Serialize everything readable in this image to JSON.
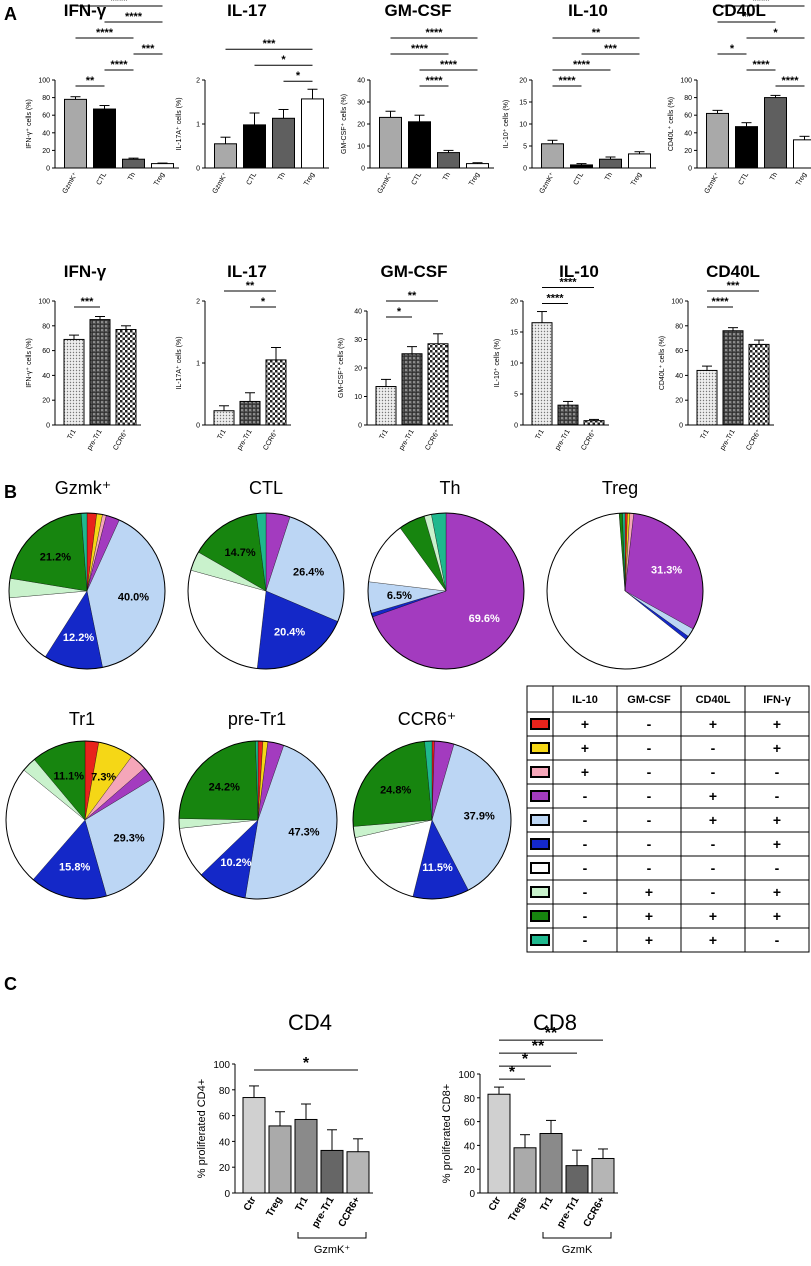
{
  "figure": {
    "panel_labels": [
      "A",
      "B",
      "C"
    ]
  },
  "chart_data": [
    {
      "id": "a1",
      "panel": "A",
      "type": "bar",
      "title": "IFN-γ",
      "ylabel": "IFN-γ⁺ cells (%)",
      "categories": [
        "GzmK⁺",
        "CTL",
        "Th",
        "Treg"
      ],
      "values": [
        78,
        67,
        10,
        5
      ],
      "errors": [
        3,
        4,
        1.2,
        0.6
      ],
      "ylim": [
        0,
        100
      ],
      "yticks": [
        0,
        20,
        40,
        60,
        80,
        100
      ],
      "fills": [
        "gray",
        "black",
        "dark",
        "white"
      ],
      "brackets": [
        {
          "from": 0,
          "to": 3,
          "label": "****"
        },
        {
          "from": 0,
          "to": 2,
          "label": "****"
        },
        {
          "from": 0,
          "to": 1,
          "label": "**"
        },
        {
          "from": 1,
          "to": 2,
          "label": "****"
        },
        {
          "from": 1,
          "to": 3,
          "label": "****"
        },
        {
          "from": 2,
          "to": 3,
          "label": "***"
        }
      ]
    },
    {
      "id": "a2",
      "panel": "A",
      "type": "bar",
      "title": "IL-17",
      "ylabel": "IL-17A⁺ cells (%)",
      "categories": [
        "GzmK⁺",
        "CTL",
        "Th",
        "Treg"
      ],
      "values": [
        0.55,
        0.98,
        1.13,
        1.57
      ],
      "errors": [
        0.15,
        0.27,
        0.2,
        0.22
      ],
      "ylim": [
        0,
        2
      ],
      "yticks": [
        0,
        1,
        2
      ],
      "fills": [
        "gray",
        "black",
        "dark",
        "white"
      ],
      "brackets": [
        {
          "from": 0,
          "to": 3,
          "label": "***"
        },
        {
          "from": 1,
          "to": 3,
          "label": "*"
        },
        {
          "from": 2,
          "to": 3,
          "label": "*"
        }
      ]
    },
    {
      "id": "a3",
      "panel": "A",
      "type": "bar",
      "title": "GM-CSF",
      "ylabel": "GM-CSF⁺ cells (%)",
      "categories": [
        "GzmK⁺",
        "CTL",
        "Th",
        "Treg"
      ],
      "values": [
        23,
        21,
        7,
        2
      ],
      "errors": [
        2.8,
        3,
        1,
        0.4
      ],
      "ylim": [
        0,
        40
      ],
      "yticks": [
        0,
        10,
        20,
        30,
        40
      ],
      "fills": [
        "gray",
        "black",
        "dark",
        "white"
      ],
      "brackets": [
        {
          "from": 0,
          "to": 3,
          "label": "****"
        },
        {
          "from": 1,
          "to": 3,
          "label": "****"
        },
        {
          "from": 0,
          "to": 2,
          "label": "****"
        },
        {
          "from": 1,
          "to": 2,
          "label": "****"
        }
      ]
    },
    {
      "id": "a4",
      "panel": "A",
      "type": "bar",
      "title": "IL-10",
      "ylabel": "IL-10⁺ cells (%)",
      "categories": [
        "GzmK⁺",
        "CTL",
        "Th",
        "Treg"
      ],
      "values": [
        5.5,
        0.7,
        2,
        3.2
      ],
      "errors": [
        0.8,
        0.3,
        0.5,
        0.5
      ],
      "ylim": [
        0,
        20
      ],
      "yticks": [
        0,
        5,
        10,
        15,
        20
      ],
      "fills": [
        "gray",
        "black",
        "dark",
        "white"
      ],
      "brackets": [
        {
          "from": 0,
          "to": 3,
          "label": "**"
        },
        {
          "from": 0,
          "to": 2,
          "label": "****"
        },
        {
          "from": 0,
          "to": 1,
          "label": "****"
        },
        {
          "from": 1,
          "to": 3,
          "label": "***"
        }
      ]
    },
    {
      "id": "a5",
      "panel": "A",
      "type": "bar",
      "title": "CD40L",
      "ylabel": "CD40L⁺ cells (%)",
      "categories": [
        "GzmK⁺",
        "CTL",
        "Th",
        "Treg"
      ],
      "values": [
        62,
        47,
        80,
        32
      ],
      "errors": [
        3.5,
        4.5,
        2.5,
        4
      ],
      "ylim": [
        0,
        100
      ],
      "yticks": [
        0,
        20,
        40,
        60,
        80,
        100
      ],
      "fills": [
        "gray",
        "black",
        "dark",
        "white"
      ],
      "brackets": [
        {
          "from": 0,
          "to": 3,
          "label": "****"
        },
        {
          "from": 1,
          "to": 3,
          "label": "*"
        },
        {
          "from": 0,
          "to": 2,
          "label": "**"
        },
        {
          "from": 2,
          "to": 3,
          "label": "****"
        },
        {
          "from": 1,
          "to": 2,
          "label": "****"
        },
        {
          "from": 0,
          "to": 1,
          "label": "*"
        }
      ]
    },
    {
      "id": "a6",
      "panel": "A",
      "type": "bar",
      "title": "IFN-γ",
      "ylabel": "IFN-γ⁺ cells (%)",
      "categories": [
        "Tr1",
        "pre-Tr1",
        "CCR6⁺"
      ],
      "values": [
        69,
        85,
        77
      ],
      "errors": [
        3.5,
        2.5,
        3
      ],
      "ylim": [
        0,
        100
      ],
      "yticks": [
        0,
        20,
        40,
        60,
        80,
        100
      ],
      "fills": [
        "dots",
        "grid",
        "check"
      ],
      "brackets": [
        {
          "from": 0,
          "to": 1,
          "label": "***"
        }
      ]
    },
    {
      "id": "a7",
      "panel": "A",
      "type": "bar",
      "title": "IL-17",
      "ylabel": "IL-17A⁺ cells (%)",
      "categories": [
        "Tr1",
        "pre-Tr1",
        "CCR6⁺"
      ],
      "values": [
        0.23,
        0.38,
        1.05
      ],
      "errors": [
        0.08,
        0.14,
        0.2
      ],
      "ylim": [
        0,
        2
      ],
      "yticks": [
        0,
        1,
        2
      ],
      "fills": [
        "dots",
        "grid",
        "check"
      ],
      "brackets": [
        {
          "from": 0,
          "to": 2,
          "label": "**"
        },
        {
          "from": 1,
          "to": 2,
          "label": "*"
        }
      ]
    },
    {
      "id": "a8",
      "panel": "A",
      "type": "bar",
      "title": "GM-CSF",
      "ylabel": "GM-CSF⁺ cells (%)",
      "categories": [
        "Tr1",
        "pre-Tr1",
        "CCR6⁺"
      ],
      "values": [
        13.5,
        25,
        28.5
      ],
      "errors": [
        2.5,
        2.5,
        3.5
      ],
      "ylim": [
        0,
        40
      ],
      "yticks": [
        0,
        10,
        20,
        30,
        40
      ],
      "fills": [
        "dots",
        "grid",
        "check"
      ],
      "brackets": [
        {
          "from": 0,
          "to": 2,
          "label": "**"
        },
        {
          "from": 0,
          "to": 1,
          "label": "*"
        }
      ]
    },
    {
      "id": "a9",
      "panel": "A",
      "type": "bar",
      "title": "IL-10",
      "ylabel": "IL-10⁺ cells (%)",
      "categories": [
        "Tr1",
        "pre-Tr1",
        "CCR6⁺"
      ],
      "values": [
        16.5,
        3.2,
        0.7
      ],
      "errors": [
        1.8,
        0.6,
        0.2
      ],
      "ylim": [
        0,
        20
      ],
      "yticks": [
        0,
        5,
        10,
        15,
        20
      ],
      "fills": [
        "dots",
        "grid",
        "check"
      ],
      "brackets": [
        {
          "from": 0,
          "to": 2,
          "label": "****"
        },
        {
          "from": 0,
          "to": 1,
          "label": "****"
        }
      ]
    },
    {
      "id": "a10",
      "panel": "A",
      "type": "bar",
      "title": "CD40L",
      "ylabel": "CD40L⁺ cells (%)",
      "categories": [
        "Tr1",
        "pre-Tr1",
        "CCR6⁺"
      ],
      "values": [
        44,
        76,
        65
      ],
      "errors": [
        3.5,
        2.5,
        3.5
      ],
      "ylim": [
        0,
        100
      ],
      "yticks": [
        0,
        20,
        40,
        60,
        80,
        100
      ],
      "fills": [
        "dots",
        "grid",
        "check"
      ],
      "brackets": [
        {
          "from": 0,
          "to": 2,
          "label": "***"
        },
        {
          "from": 0,
          "to": 1,
          "label": "****"
        }
      ]
    },
    {
      "id": "b1",
      "panel": "B",
      "type": "pie",
      "title": "Gzmk⁺",
      "slices": [
        {
          "color": "red",
          "value": 2,
          "label": ""
        },
        {
          "color": "yellow",
          "value": 1.2,
          "label": ""
        },
        {
          "color": "pink",
          "value": 0.8,
          "label": ""
        },
        {
          "color": "purple",
          "value": 2.8,
          "label": ""
        },
        {
          "color": "lightblue",
          "value": 40,
          "label": "40.0%"
        },
        {
          "color": "blue",
          "value": 12.2,
          "label": "12.2%"
        },
        {
          "color": "white",
          "value": 14.6,
          "label": ""
        },
        {
          "color": "lightgreen",
          "value": 4,
          "label": ""
        },
        {
          "color": "green",
          "value": 21.2,
          "label": "21.2%"
        },
        {
          "color": "teal",
          "value": 1.2,
          "label": ""
        }
      ]
    },
    {
      "id": "b2",
      "panel": "B",
      "type": "pie",
      "title": "CTL",
      "slices": [
        {
          "color": "purple",
          "value": 5,
          "label": ""
        },
        {
          "color": "lightblue",
          "value": 26.4,
          "label": "26.4%"
        },
        {
          "color": "blue",
          "value": 20.4,
          "label": "20.4%"
        },
        {
          "color": "white",
          "value": 27.5,
          "label": ""
        },
        {
          "color": "lightgreen",
          "value": 4,
          "label": ""
        },
        {
          "color": "green",
          "value": 14.7,
          "label": "14.7%"
        },
        {
          "color": "teal",
          "value": 2,
          "label": ""
        }
      ]
    },
    {
      "id": "b3",
      "panel": "B",
      "type": "pie",
      "title": "Th",
      "slices": [
        {
          "color": "purple",
          "value": 69.6,
          "label": "69.6%"
        },
        {
          "color": "blue",
          "value": 0.8,
          "label": ""
        },
        {
          "color": "lightblue",
          "value": 6.5,
          "label": "6.5%"
        },
        {
          "color": "white",
          "value": 13.1,
          "label": ""
        },
        {
          "color": "green",
          "value": 5.5,
          "label": ""
        },
        {
          "color": "lightgreen",
          "value": 1.5,
          "label": ""
        },
        {
          "color": "teal",
          "value": 3,
          "label": ""
        }
      ]
    },
    {
      "id": "b4",
      "panel": "B",
      "type": "pie",
      "title": "Treg",
      "slices": [
        {
          "color": "red",
          "value": 0.5,
          "label": ""
        },
        {
          "color": "yellow",
          "value": 0.5,
          "label": ""
        },
        {
          "color": "pink",
          "value": 0.8,
          "label": ""
        },
        {
          "color": "purple",
          "value": 31.3,
          "label": "31.3%"
        },
        {
          "color": "lightblue",
          "value": 1.8,
          "label": ""
        },
        {
          "color": "blue",
          "value": 0.8,
          "label": ""
        },
        {
          "color": "white",
          "value": 63.1,
          "label": ""
        },
        {
          "color": "green",
          "value": 0.7,
          "label": ""
        },
        {
          "color": "teal",
          "value": 0.5,
          "label": ""
        }
      ]
    },
    {
      "id": "b5",
      "panel": "B",
      "type": "pie",
      "title": "Tr1",
      "slices": [
        {
          "color": "red",
          "value": 2.8,
          "label": ""
        },
        {
          "color": "yellow",
          "value": 7.3,
          "label": "7.3%"
        },
        {
          "color": "pink",
          "value": 3.5,
          "label": ""
        },
        {
          "color": "purple",
          "value": 2.7,
          "label": ""
        },
        {
          "color": "lightblue",
          "value": 29.3,
          "label": "29.3%"
        },
        {
          "color": "blue",
          "value": 15.8,
          "label": "15.8%"
        },
        {
          "color": "white",
          "value": 24.5,
          "label": ""
        },
        {
          "color": "lightgreen",
          "value": 3,
          "label": ""
        },
        {
          "color": "green",
          "value": 11.1,
          "label": "11.1%"
        }
      ]
    },
    {
      "id": "b6",
      "panel": "B",
      "type": "pie",
      "title": "pre-Tr1",
      "slices": [
        {
          "color": "red",
          "value": 1,
          "label": ""
        },
        {
          "color": "yellow",
          "value": 1,
          "label": ""
        },
        {
          "color": "purple",
          "value": 3.3,
          "label": ""
        },
        {
          "color": "lightblue",
          "value": 47.3,
          "label": "47.3%"
        },
        {
          "color": "blue",
          "value": 10.2,
          "label": "10.2%"
        },
        {
          "color": "white",
          "value": 10.5,
          "label": ""
        },
        {
          "color": "lightgreen",
          "value": 2,
          "label": ""
        },
        {
          "color": "green",
          "value": 24.2,
          "label": "24.2%"
        },
        {
          "color": "teal",
          "value": 0.5,
          "label": ""
        }
      ]
    },
    {
      "id": "b7",
      "panel": "B",
      "type": "pie",
      "title": "CCR6⁺",
      "slices": [
        {
          "color": "red",
          "value": 0.5,
          "label": ""
        },
        {
          "color": "purple",
          "value": 4,
          "label": ""
        },
        {
          "color": "lightblue",
          "value": 37.9,
          "label": "37.9%"
        },
        {
          "color": "blue",
          "value": 11.5,
          "label": "11.5%"
        },
        {
          "color": "white",
          "value": 17.5,
          "label": ""
        },
        {
          "color": "lightgreen",
          "value": 2.3,
          "label": ""
        },
        {
          "color": "green",
          "value": 24.8,
          "label": "24.8%"
        },
        {
          "color": "teal",
          "value": 1.5,
          "label": ""
        }
      ]
    },
    {
      "id": "c1",
      "panel": "C",
      "type": "bar",
      "title": "CD4",
      "ylabel": "% proliferated CD4+",
      "categories": [
        "Ctr",
        "Treg",
        "Tr1",
        "pre-Tr1",
        "CCR6+"
      ],
      "values": [
        74,
        52,
        57,
        33,
        32
      ],
      "errors": [
        9,
        11,
        12,
        16,
        10
      ],
      "ylim": [
        0,
        100
      ],
      "yticks": [
        0,
        20,
        40,
        60,
        80,
        100
      ],
      "fills": [
        "c0",
        "c1",
        "c2",
        "c3",
        "c4"
      ],
      "brackets": [
        {
          "from": 0,
          "to": 4,
          "label": "*"
        }
      ],
      "group": {
        "from": 2,
        "to": 4,
        "label": "GzmK⁺"
      }
    },
    {
      "id": "c2",
      "panel": "C",
      "type": "bar",
      "title": "CD8",
      "ylabel": "% proliferated CD8+",
      "categories": [
        "Ctr",
        "Tregs",
        "Tr1",
        "pre-Tr1",
        "CCR6+"
      ],
      "values": [
        83,
        38,
        50,
        23,
        29
      ],
      "errors": [
        6,
        11,
        11,
        13,
        8
      ],
      "ylim": [
        0,
        100
      ],
      "yticks": [
        0,
        20,
        40,
        60,
        80,
        100
      ],
      "fills": [
        "c0",
        "c1",
        "c2",
        "c3",
        "c4"
      ],
      "brackets": [
        {
          "from": 0,
          "to": 1,
          "label": "*"
        },
        {
          "from": 0,
          "to": 2,
          "label": "*"
        },
        {
          "from": 0,
          "to": 3,
          "label": "**"
        },
        {
          "from": 0,
          "to": 4,
          "label": "**"
        }
      ],
      "group": {
        "from": 2,
        "to": 4,
        "label": "GzmK"
      }
    },
    {
      "id": "legend",
      "panel": "B",
      "type": "table",
      "columns": [
        "IL-10",
        "GM-CSF",
        "CD40L",
        "IFN-γ"
      ],
      "rows": [
        {
          "color": "red",
          "cells": [
            "+",
            "-",
            "+",
            "+"
          ]
        },
        {
          "color": "yellow",
          "cells": [
            "+",
            "-",
            "-",
            "+"
          ]
        },
        {
          "color": "pink",
          "cells": [
            "+",
            "-",
            "-",
            "-"
          ]
        },
        {
          "color": "purple",
          "cells": [
            "-",
            "-",
            "+",
            "-"
          ]
        },
        {
          "color": "lightblue",
          "cells": [
            "-",
            "-",
            "+",
            "+"
          ]
        },
        {
          "color": "blue",
          "cells": [
            "-",
            "-",
            "-",
            "+"
          ]
        },
        {
          "color": "white",
          "cells": [
            "-",
            "-",
            "-",
            "-"
          ]
        },
        {
          "color": "lightgreen",
          "cells": [
            "-",
            "+",
            "-",
            "+"
          ]
        },
        {
          "color": "green",
          "cells": [
            "-",
            "+",
            "+",
            "+"
          ]
        },
        {
          "color": "teal",
          "cells": [
            "-",
            "+",
            "+",
            "-"
          ]
        }
      ]
    }
  ],
  "colors": {
    "red": "#e8231c",
    "yellow": "#f5d716",
    "pink": "#f5a6b9",
    "purple": "#a33bbf",
    "lightblue": "#bcd6f4",
    "blue": "#1428c8",
    "white": "#ffffff",
    "lightgreen": "#c9f2cc",
    "green": "#17850f",
    "teal": "#1fb88e",
    "gray": "#a9a9a9",
    "black": "#000000",
    "dark": "#5f5f5f",
    "c0": "#d0d0d0",
    "c1": "#aaaaaa",
    "c2": "#8a8a8a",
    "c3": "#666666",
    "c4": "#b5b5b5"
  }
}
